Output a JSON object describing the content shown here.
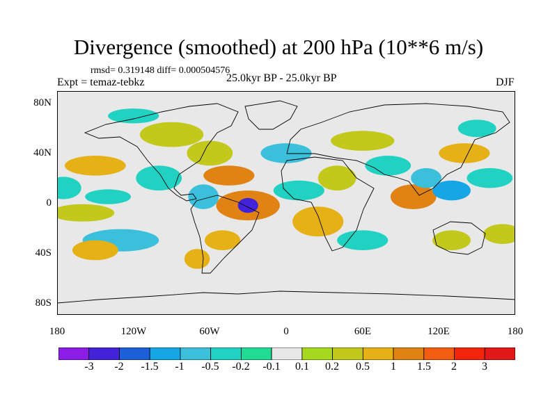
{
  "header": {
    "title": "Divergence (smoothed) at 200 hPa (10**6 m/s)",
    "stats": "rmsd= 0.319148 diff= 0.000504576",
    "experiment": "Expt = temaz-tebkz",
    "period": "25.0kyr BP - 25.0kyr BP",
    "season": "DJF"
  },
  "axes": {
    "lat_labels": [
      "80N",
      "40N",
      "0",
      "40S",
      "80S"
    ],
    "lon_labels": [
      "180",
      "120W",
      "60W",
      "0",
      "60E",
      "120E",
      "180"
    ]
  },
  "colorbar": {
    "labels": [
      "-3",
      "-2",
      "-1.5",
      "-1",
      "-0.5",
      "-0.2",
      "-0.1",
      "0.1",
      "0.2",
      "0.5",
      "1",
      "1.5",
      "2",
      "3"
    ],
    "colors": [
      "#8a1ee6",
      "#4223d9",
      "#1d5fd6",
      "#16a6e6",
      "#3cbfda",
      "#21d2c3",
      "#1fdb93",
      "#e8e8e8",
      "#a5d81e",
      "#c2c81c",
      "#e5b116",
      "#e08214",
      "#f25d12",
      "#f0250c",
      "#e01818"
    ]
  },
  "map": {
    "ocean_color": "#e8e8e8",
    "coast_color": "#000000",
    "blobs": [
      {
        "lon": -150,
        "lat": 30,
        "rx": 24,
        "ry": 8,
        "v": 0.6
      },
      {
        "lon": -175,
        "lat": 12,
        "rx": 14,
        "ry": 9,
        "v": -0.4
      },
      {
        "lon": -140,
        "lat": 5,
        "rx": 18,
        "ry": 6,
        "v": -0.3
      },
      {
        "lon": -160,
        "lat": -8,
        "rx": 25,
        "ry": 7,
        "v": 0.5
      },
      {
        "lon": -130,
        "lat": -30,
        "rx": 30,
        "ry": 9,
        "v": -0.5
      },
      {
        "lon": -150,
        "lat": -38,
        "rx": 18,
        "ry": 8,
        "v": 0.6
      },
      {
        "lon": -100,
        "lat": 20,
        "rx": 18,
        "ry": 10,
        "v": -0.3
      },
      {
        "lon": -90,
        "lat": 55,
        "rx": 25,
        "ry": 10,
        "v": 0.3
      },
      {
        "lon": -120,
        "lat": 70,
        "rx": 20,
        "ry": 6,
        "v": -0.2
      },
      {
        "lon": -60,
        "lat": 40,
        "rx": 18,
        "ry": 10,
        "v": 0.5
      },
      {
        "lon": -45,
        "lat": 22,
        "rx": 20,
        "ry": 8,
        "v": 1.1
      },
      {
        "lon": -30,
        "lat": -2,
        "rx": 25,
        "ry": 12,
        "v": 1.2
      },
      {
        "lon": -30,
        "lat": -2,
        "rx": 8,
        "ry": 6,
        "v": -2.2
      },
      {
        "lon": -65,
        "lat": 5,
        "rx": 12,
        "ry": 10,
        "v": -0.6
      },
      {
        "lon": -50,
        "lat": -30,
        "rx": 14,
        "ry": 8,
        "v": 0.8
      },
      {
        "lon": -70,
        "lat": -45,
        "rx": 10,
        "ry": 8,
        "v": 1.0
      },
      {
        "lon": 0,
        "lat": 40,
        "rx": 20,
        "ry": 8,
        "v": -0.5
      },
      {
        "lon": 10,
        "lat": 10,
        "rx": 20,
        "ry": 8,
        "v": -0.4
      },
      {
        "lon": 25,
        "lat": -15,
        "rx": 20,
        "ry": 12,
        "v": 0.6
      },
      {
        "lon": 40,
        "lat": 20,
        "rx": 15,
        "ry": 10,
        "v": 0.5
      },
      {
        "lon": 60,
        "lat": 50,
        "rx": 25,
        "ry": 8,
        "v": 0.4
      },
      {
        "lon": 60,
        "lat": -30,
        "rx": 20,
        "ry": 8,
        "v": -0.4
      },
      {
        "lon": 80,
        "lat": 30,
        "rx": 18,
        "ry": 8,
        "v": -0.3
      },
      {
        "lon": 100,
        "lat": 5,
        "rx": 18,
        "ry": 10,
        "v": 1.2
      },
      {
        "lon": 110,
        "lat": 20,
        "rx": 12,
        "ry": 8,
        "v": -0.6
      },
      {
        "lon": 130,
        "lat": 10,
        "rx": 15,
        "ry": 8,
        "v": -1.3
      },
      {
        "lon": 140,
        "lat": 40,
        "rx": 20,
        "ry": 8,
        "v": 0.6
      },
      {
        "lon": 160,
        "lat": 20,
        "rx": 18,
        "ry": 8,
        "v": -0.4
      },
      {
        "lon": 170,
        "lat": -25,
        "rx": 15,
        "ry": 8,
        "v": 0.4
      },
      {
        "lon": 130,
        "lat": -30,
        "rx": 15,
        "ry": 8,
        "v": 0.5
      },
      {
        "lon": 150,
        "lat": 60,
        "rx": 15,
        "ry": 7,
        "v": -0.3
      }
    ]
  }
}
